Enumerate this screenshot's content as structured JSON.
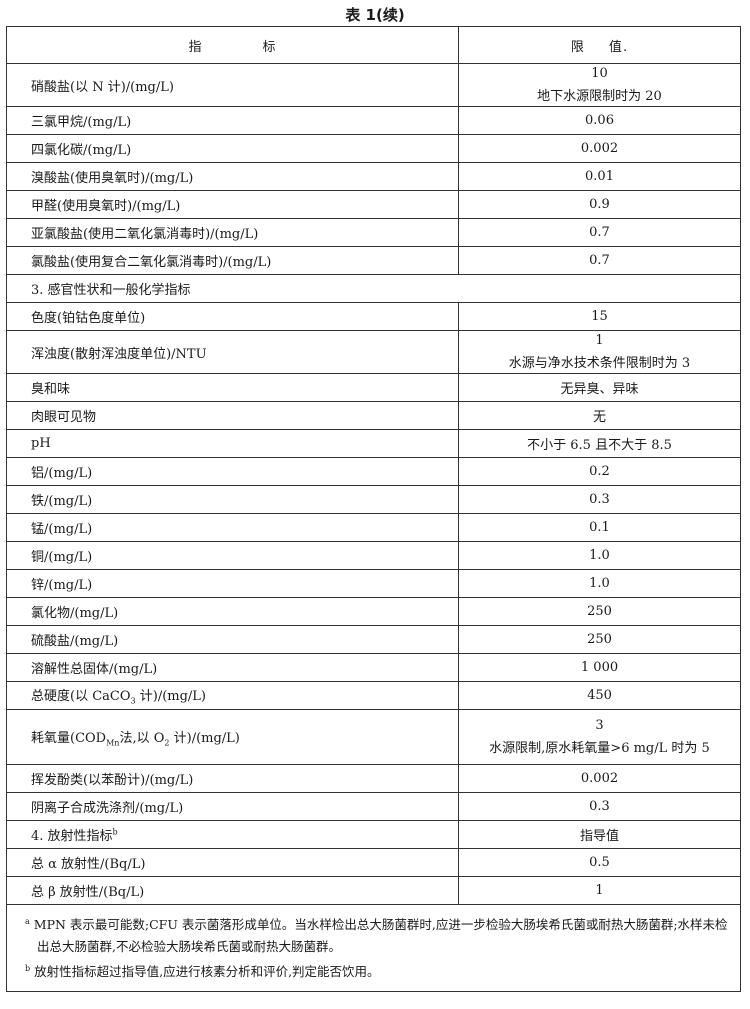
{
  "title": "表 1(续)",
  "header": {
    "indicator_a": "指",
    "indicator_b": "标",
    "limit_a": "限",
    "limit_b": "值",
    "limit_mark": "."
  },
  "rows": [
    {
      "name": "硝酸盐(以 N 计)/(mg/L)",
      "value": "10",
      "value2": "地下水源限制时为 20"
    },
    {
      "name": "三氯甲烷/(mg/L)",
      "value": "0.06"
    },
    {
      "name": "四氯化碳/(mg/L)",
      "value": "0.002"
    },
    {
      "name": "溴酸盐(使用臭氧时)/(mg/L)",
      "value": "0.01"
    },
    {
      "name": "甲醛(使用臭氧时)/(mg/L)",
      "value": "0.9"
    },
    {
      "name": "亚氯酸盐(使用二氧化氯消毒时)/(mg/L)",
      "value": "0.7"
    },
    {
      "name": "氯酸盐(使用复合二氧化氯消毒时)/(mg/L)",
      "value": "0.7"
    },
    {
      "section": "3. 感官性状和一般化学指标"
    },
    {
      "name": "色度(铂钴色度单位)",
      "value": "15"
    },
    {
      "name": "浑浊度(散射浑浊度单位)/NTU",
      "value": "1",
      "value2": "水源与净水技术条件限制时为 3"
    },
    {
      "name": "臭和味",
      "value": "无异臭、异味"
    },
    {
      "name": "肉眼可见物",
      "value": "无"
    },
    {
      "name": "pH",
      "value": "不小于 6.5 且不大于 8.5"
    },
    {
      "name": "铝/(mg/L)",
      "value": "0.2"
    },
    {
      "name": "铁/(mg/L)",
      "value": "0.3"
    },
    {
      "name": "锰/(mg/L)",
      "value": "0.1"
    },
    {
      "name": "铜/(mg/L)",
      "value": "1.0"
    },
    {
      "name": "锌/(mg/L)",
      "value": "1.0"
    },
    {
      "name": "氯化物/(mg/L)",
      "value": "250"
    },
    {
      "name": "硫酸盐/(mg/L)",
      "value": "250"
    },
    {
      "name": "溶解性总固体/(mg/L)",
      "value": "1 000"
    },
    {
      "name_parts": [
        "总硬度(以 CaCO",
        "3",
        " 计)/(mg/L)"
      ],
      "value": "450"
    },
    {
      "name_parts": [
        "耗氧量(COD",
        "Mn",
        "法,以 O",
        "2",
        " 计)/(mg/L)"
      ],
      "value": "3",
      "value2": "水源限制,原水耗氧量>6 mg/L 时为 5"
    },
    {
      "name": "挥发酚类(以苯酚计)/(mg/L)",
      "value": "0.002"
    },
    {
      "name": "阴离子合成洗涤剂/(mg/L)",
      "value": "0.3"
    },
    {
      "name": "4. 放射性指标",
      "sup": "b",
      "value": "指导值"
    },
    {
      "name": "总 α 放射性/(Bq/L)",
      "value": "0.5"
    },
    {
      "name": "总 β 放射性/(Bq/L)",
      "value": "1"
    }
  ],
  "footnotes": [
    {
      "mark": "a",
      "text": "MPN 表示最可能数;CFU 表示菌落形成单位。当水样检出总大肠菌群时,应进一步检验大肠埃希氏菌或耐热大肠菌群;水样未检出总大肠菌群,不必检验大肠埃希氏菌或耐热大肠菌群。"
    },
    {
      "mark": "b",
      "text": "放射性指标超过指导值,应进行核素分析和评价,判定能否饮用。"
    }
  ]
}
